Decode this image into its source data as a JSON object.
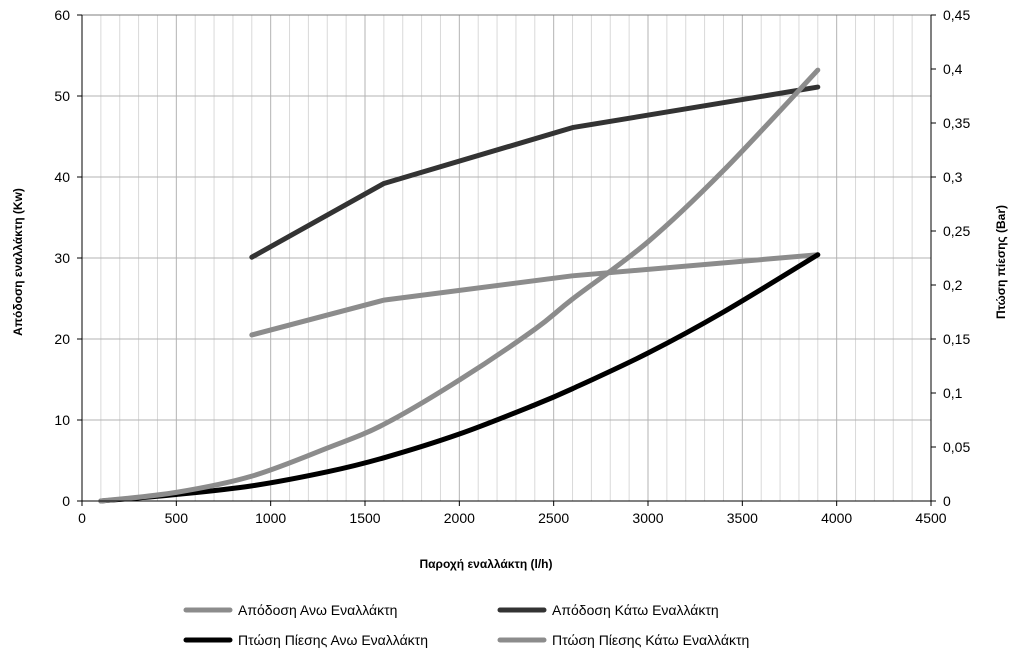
{
  "chart_data": {
    "type": "line",
    "title": "",
    "xlabel": "Παροχή εναλλάκτη (l/h)",
    "ylabel_left": "Απόδοση εναλλάκτη (Kw)",
    "ylabel_right": "Πτώση πίεσης (Bar)",
    "xlim": [
      0,
      4500
    ],
    "ylim_left": [
      0,
      60
    ],
    "ylim_right": [
      0,
      0.45
    ],
    "x_ticks": [
      "0",
      "500",
      "1000",
      "1500",
      "2000",
      "2500",
      "3000",
      "3500",
      "4000",
      "4500"
    ],
    "y_left_ticks": [
      "0",
      "10",
      "20",
      "30",
      "40",
      "50",
      "60"
    ],
    "y_right_ticks": [
      "0",
      "0,05",
      "0,1",
      "0,15",
      "0,2",
      "0,25",
      "0,3",
      "0,35",
      "0,4",
      "0,45"
    ],
    "grid": true,
    "legend_position": "bottom",
    "series": [
      {
        "name": "Απόδοση Ανω Εναλλάκτη",
        "axis": "left",
        "color": "#8c8c8c",
        "x": [
          900,
          1600,
          2600,
          3900
        ],
        "y": [
          20.5,
          24.8,
          27.8,
          30.4
        ]
      },
      {
        "name": "Απόδοση Κάτω Εναλλάκτη",
        "axis": "left",
        "color": "#333333",
        "x": [
          900,
          1600,
          2600,
          3900
        ],
        "y": [
          30.1,
          39.2,
          46.1,
          51.1
        ]
      },
      {
        "name": "Πτώση Πίεσης Ανω Εναλλάκτη",
        "axis": "right",
        "color": "#000000",
        "x": [
          100,
          500,
          900,
          1300,
          1600,
          2000,
          2400,
          2600,
          3000,
          3400,
          3900
        ],
        "y": [
          0.0,
          0.006,
          0.014,
          0.027,
          0.04,
          0.062,
          0.089,
          0.104,
          0.137,
          0.175,
          0.228
        ]
      },
      {
        "name": "Πτώση Πίεσης Κάτω Εναλλάκτη",
        "axis": "right",
        "color": "#8c8c8c",
        "x": [
          100,
          500,
          900,
          1300,
          1600,
          2000,
          2400,
          2600,
          3000,
          3400,
          3900
        ],
        "y": [
          0.0,
          0.008,
          0.023,
          0.049,
          0.071,
          0.112,
          0.159,
          0.187,
          0.24,
          0.306,
          0.399
        ]
      }
    ]
  }
}
